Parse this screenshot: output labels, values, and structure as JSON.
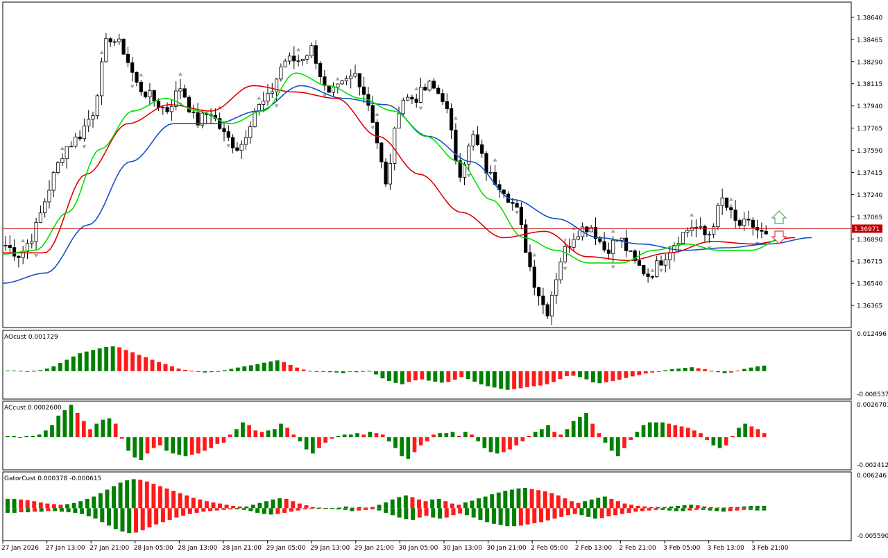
{
  "chart_data": [
    {
      "type": "candlestick",
      "panel": "price",
      "ylim": [
        1.3619,
        1.3876
      ],
      "y_ticks": [
        1.3864,
        1.38465,
        1.3829,
        1.38115,
        1.3794,
        1.37765,
        1.3759,
        1.37415,
        1.3724,
        1.37065,
        1.3689,
        1.36715,
        1.3654,
        1.36365
      ],
      "y_tick_labels": [
        "1.38640",
        "1.38465",
        "1.38290",
        "1.38115",
        "1.37940",
        "1.37765",
        "1.37590",
        "1.37415",
        "1.37240",
        "1.37065",
        "1.36890",
        "1.36715",
        "1.36540",
        "1.36365"
      ],
      "current_price": 1.36971,
      "current_price_label": "1.36971",
      "anchors": [
        1.3684,
        1.3676,
        1.3695,
        1.373,
        1.376,
        1.377,
        1.379,
        1.385,
        1.384,
        1.381,
        1.38,
        1.379,
        1.381,
        1.378,
        1.379,
        1.377,
        1.376,
        1.379,
        1.38,
        1.383,
        1.383,
        1.384,
        1.38,
        1.381,
        1.382,
        1.379,
        1.373,
        1.38,
        1.38,
        1.381,
        1.38,
        1.374,
        1.377,
        1.374,
        1.373,
        1.371,
        1.366,
        1.363,
        1.3675,
        1.3695,
        1.37,
        1.368,
        1.369,
        1.367,
        1.366,
        1.3675,
        1.369,
        1.37,
        1.369,
        1.372,
        1.37,
        1.37,
        1.369
      ],
      "green_line": [
        1.3677,
        1.368,
        1.371,
        1.376,
        1.379,
        1.38,
        1.379,
        1.378,
        1.379,
        1.382,
        1.381,
        1.38,
        1.379,
        1.377,
        1.375,
        1.372,
        1.369,
        1.368,
        1.367,
        1.367,
        1.368,
        1.3685,
        1.368,
        1.368,
        1.369
      ],
      "red_line": [
        1.3678,
        1.3678,
        1.374,
        1.378,
        1.3795,
        1.379,
        1.381,
        1.3805,
        1.38,
        1.377,
        1.374,
        1.371,
        1.369,
        1.3695,
        1.3675,
        1.3672,
        1.3678,
        1.3687,
        1.3685,
        1.369
      ],
      "blue_line": [
        1.3654,
        1.3662,
        1.37,
        1.375,
        1.378,
        1.378,
        1.379,
        1.381,
        1.38,
        1.3795,
        1.377,
        1.375,
        1.372,
        1.3705,
        1.369,
        1.3685,
        1.368,
        1.3682,
        1.3685,
        1.369
      ],
      "up_arrow_label": "up-arrow",
      "down_arrow_label": "down-arrow"
    },
    {
      "type": "histogram",
      "panel": "ao",
      "title": "AOcust 0.001729",
      "ylim": [
        -0.008537,
        0.012496
      ],
      "y_tick_labels": [
        "0.012496",
        "-0.008537"
      ],
      "values": [
        0.0002,
        0.0002,
        0.0001,
        0.0,
        0.0001,
        0.0003,
        0.0008,
        0.0015,
        0.0025,
        0.0035,
        0.0045,
        0.0055,
        0.006,
        0.0065,
        0.007,
        0.0074,
        0.0076,
        0.0073,
        0.0065,
        0.0058,
        0.005,
        0.0043,
        0.0035,
        0.0028,
        0.0022,
        0.0015,
        0.0008,
        0.0004,
        0.0001,
        -0.0002,
        -0.0004,
        -0.0003,
        -0.0001,
        0.0003,
        0.0007,
        0.0011,
        0.0015,
        0.0018,
        0.0022,
        0.0026,
        0.003,
        0.0033,
        0.0028,
        0.0019,
        0.0011,
        0.0005,
        0.0001,
        -0.0001,
        -0.0002,
        -0.0003,
        -0.0004,
        -0.0006,
        -0.0001,
        -0.0003,
        -0.0001,
        0.0001,
        -0.001,
        -0.0022,
        -0.003,
        -0.0036,
        -0.004,
        -0.0033,
        -0.0028,
        -0.0025,
        -0.0029,
        -0.0032,
        -0.0035,
        -0.0033,
        -0.0026,
        -0.0018,
        -0.0024,
        -0.0032,
        -0.004,
        -0.0046,
        -0.005,
        -0.0054,
        -0.0057,
        -0.0055,
        -0.0052,
        -0.0049,
        -0.0046,
        -0.0044,
        -0.004,
        -0.0033,
        -0.0024,
        -0.0015,
        -0.0014,
        -0.0018,
        -0.0025,
        -0.0034,
        -0.0037,
        -0.0034,
        -0.003,
        -0.0026,
        -0.0021,
        -0.0016,
        -0.0012,
        -0.0007,
        -0.0004,
        -0.0001,
        0.0003,
        0.0006,
        0.0008,
        0.001,
        0.0012,
        0.0009,
        0.0006,
        0.0001,
        -0.0003,
        -0.0006,
        -0.0004,
        0.0002,
        0.0007,
        0.0011,
        0.0015,
        0.0017
      ]
    },
    {
      "type": "histogram",
      "panel": "ac",
      "title": "ACcust 0.0002600",
      "ylim": [
        -0.0024127,
        0.0026701
      ],
      "y_tick_labels": [
        "0.0026701",
        "-0.0024127"
      ],
      "values": [
        0.0001,
        0.0001,
        0.0,
        0.0001,
        0.0001,
        0.0002,
        0.0005,
        0.0009,
        0.0016,
        0.002,
        0.0024,
        0.0018,
        0.0012,
        0.0006,
        0.001,
        0.0013,
        0.0014,
        0.001,
        -0.0001,
        -0.001,
        -0.0015,
        -0.0017,
        -0.0012,
        -0.0008,
        -0.0006,
        -0.001,
        -0.0012,
        -0.0013,
        -0.0014,
        -0.0013,
        -0.0012,
        -0.001,
        -0.0008,
        -0.0005,
        -0.0004,
        0.0002,
        0.0006,
        0.0011,
        0.0009,
        0.0005,
        0.0004,
        0.0005,
        0.0006,
        0.001,
        0.0007,
        0.0002,
        -0.0003,
        -0.0009,
        -0.0012,
        -0.0008,
        -0.0004,
        -0.0001,
        0.0001,
        0.0002,
        0.0002,
        0.0003,
        0.0002,
        0.0004,
        0.0003,
        0.0002,
        -0.0003,
        -0.0008,
        -0.0014,
        -0.0016,
        -0.0011,
        -0.0006,
        -0.0003,
        0.0002,
        0.0003,
        0.0003,
        0.0004,
        0.0001,
        0.0004,
        0.0002,
        -0.0003,
        -0.0008,
        -0.0011,
        -0.0012,
        -0.0011,
        -0.0009,
        -0.0006,
        -0.0003,
        0.0001,
        0.0004,
        0.0006,
        0.0009,
        0.0004,
        0.0002,
        0.0006,
        0.0012,
        0.0015,
        0.0018,
        0.001,
        0.0003,
        -0.0004,
        -0.001,
        -0.0014,
        -0.0008,
        -0.0002,
        0.0004,
        0.0009,
        0.0011,
        0.0011,
        0.0011,
        0.001,
        0.0009,
        0.0008,
        0.0007,
        0.0005,
        0.0003,
        -0.0002,
        -0.0006,
        -0.0008,
        -0.0006,
        0.0001,
        0.0007,
        0.001,
        0.0008,
        0.0006,
        0.0003
      ]
    },
    {
      "type": "histogram",
      "panel": "gator",
      "title": "GatorCust 0.000378 -0.000615",
      "ylim": [
        -0.00559,
        0.006246
      ],
      "y_tick_labels": [
        "0.006246",
        "-0.005590"
      ],
      "upper_values": [
        0.0016,
        0.0016,
        0.0015,
        0.0014,
        0.0012,
        0.001,
        0.0008,
        0.0007,
        0.0006,
        0.0007,
        0.0009,
        0.0012,
        0.0016,
        0.002,
        0.0026,
        0.0032,
        0.0038,
        0.0044,
        0.0048,
        0.005,
        0.0049,
        0.0046,
        0.0042,
        0.0038,
        0.0034,
        0.003,
        0.0026,
        0.0022,
        0.0018,
        0.0015,
        0.0012,
        0.001,
        0.0008,
        0.0006,
        0.0004,
        0.0003,
        0.0003,
        0.0006,
        0.0009,
        0.0012,
        0.0015,
        0.0017,
        0.0016,
        0.0012,
        0.0008,
        0.0005,
        0.0002,
        0.0001,
        0.0,
        0.0,
        0.0001,
        0.0003,
        0.0001,
        0.0002,
        0.0001,
        0.0002,
        0.0006,
        0.001,
        0.0015,
        0.0019,
        0.0022,
        0.0019,
        0.0015,
        0.0012,
        0.0015,
        0.0016,
        0.0012,
        0.0008,
        0.0006,
        0.001,
        0.0013,
        0.0017,
        0.002,
        0.0024,
        0.0027,
        0.003,
        0.0032,
        0.0034,
        0.0035,
        0.0033,
        0.0031,
        0.0029,
        0.0026,
        0.0022,
        0.0017,
        0.0012,
        0.0009,
        0.0012,
        0.0015,
        0.0018,
        0.002,
        0.0016,
        0.0012,
        0.0008,
        0.0006,
        0.0004,
        0.0003,
        0.0002,
        0.0002,
        0.0002,
        0.0003,
        0.0004,
        0.0005,
        0.0006,
        0.0005,
        0.0003,
        0.0002,
        0.0001,
        0.0001,
        0.0002,
        0.0002,
        0.0003,
        0.0004,
        0.0004,
        0.0004
      ],
      "lower_values": [
        -0.0008,
        -0.0008,
        -0.0007,
        -0.0007,
        -0.0006,
        -0.0006,
        -0.0005,
        -0.0005,
        -0.0006,
        -0.0007,
        -0.0008,
        -0.001,
        -0.0014,
        -0.0018,
        -0.0024,
        -0.003,
        -0.0036,
        -0.004,
        -0.0043,
        -0.0042,
        -0.0038,
        -0.0033,
        -0.0028,
        -0.0024,
        -0.002,
        -0.0016,
        -0.0013,
        -0.001,
        -0.0008,
        -0.0006,
        -0.0005,
        -0.0004,
        -0.0003,
        -0.0002,
        -0.0002,
        -0.0003,
        -0.0005,
        -0.0008,
        -0.001,
        -0.0011,
        -0.001,
        -0.0008,
        -0.0006,
        -0.0004,
        -0.0002,
        -0.0001,
        -0.0001,
        -0.0001,
        -0.0001,
        -0.0002,
        -0.0003,
        -0.0005,
        -0.0004,
        -0.0003,
        -0.0002,
        -0.0004,
        -0.0008,
        -0.0012,
        -0.0016,
        -0.0019,
        -0.002,
        -0.0016,
        -0.0013,
        -0.0016,
        -0.0018,
        -0.0016,
        -0.0012,
        -0.0009,
        -0.0012,
        -0.0016,
        -0.002,
        -0.0024,
        -0.0027,
        -0.0029,
        -0.0031,
        -0.0031,
        -0.003,
        -0.0028,
        -0.0026,
        -0.0024,
        -0.0021,
        -0.0018,
        -0.0015,
        -0.0012,
        -0.001,
        -0.0012,
        -0.0015,
        -0.0018,
        -0.0017,
        -0.0014,
        -0.0012,
        -0.001,
        -0.0008,
        -0.0006,
        -0.0005,
        -0.0004,
        -0.0003,
        -0.0003,
        -0.0004,
        -0.0005,
        -0.0005,
        -0.0004,
        -0.0003,
        -0.0003,
        -0.0004,
        -0.0005,
        -0.0006,
        -0.0005,
        -0.0004,
        -0.0003,
        -0.0003,
        -0.0004,
        -0.0004
      ]
    }
  ],
  "x_axis": {
    "labels": [
      "27 Jan 2026",
      "27 Jan 13:00",
      "27 Jan 21:00",
      "28 Jan 05:00",
      "28 Jan 13:00",
      "28 Jan 21:00",
      "29 Jan 05:00",
      "29 Jan 13:00",
      "29 Jan 21:00",
      "30 Jan 05:00",
      "30 Jan 13:00",
      "30 Jan 21:00",
      "2 Feb 05:00",
      "2 Feb 13:00",
      "2 Feb 21:00",
      "3 Feb 05:00",
      "3 Feb 13:00",
      "3 Feb 21:00"
    ]
  },
  "colors": {
    "grid_border": "#000000",
    "bull_body": "#ffffff",
    "bear_body": "#000000",
    "green_line": "#00e000",
    "red_line": "#e00000",
    "blue_line": "#1450c8",
    "hist_green": "#008000",
    "hist_red": "#ff1a1a",
    "price_line": "#c00000",
    "fractal": "#a0a0a0"
  }
}
